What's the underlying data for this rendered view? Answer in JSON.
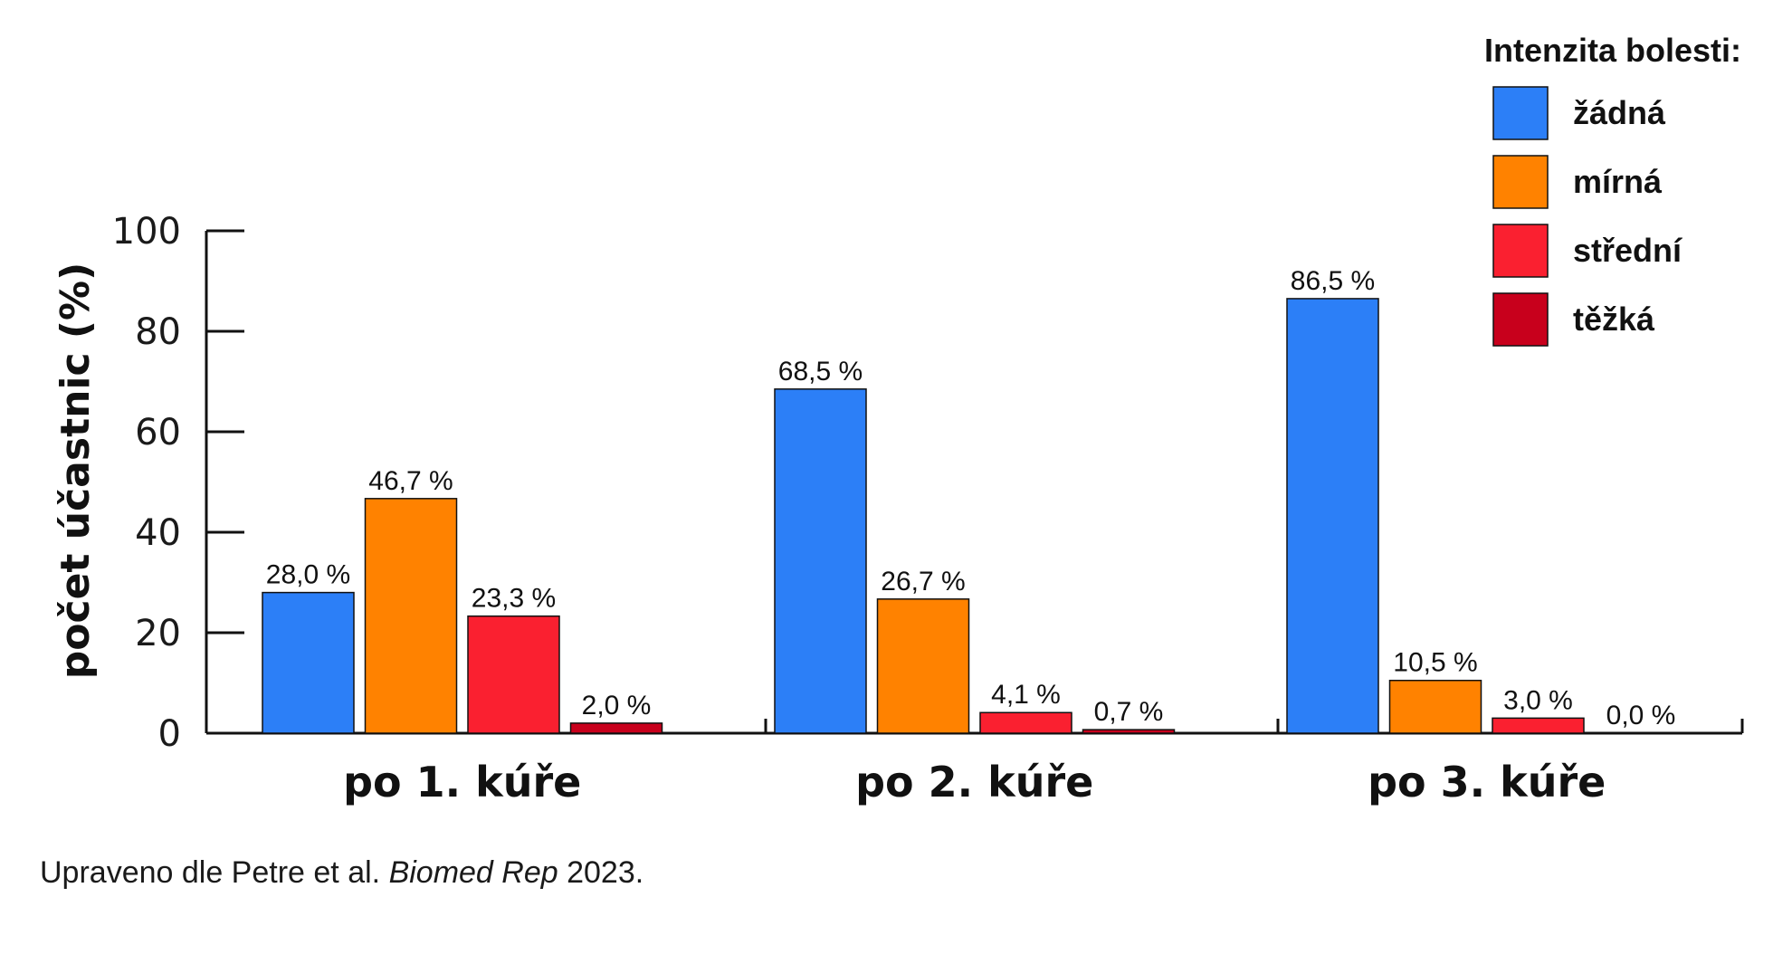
{
  "chart_data": {
    "type": "bar",
    "ylabel": "počet účastnic (%)",
    "ylim": [
      0,
      100
    ],
    "yticks": [
      "0",
      "20",
      "40",
      "60",
      "80",
      "100"
    ],
    "categories": [
      "po 1. kúře",
      "po 2. kúře",
      "po 3. kúře"
    ],
    "legend": {
      "title": "Intenzita bolesti:",
      "placement": "top-right"
    },
    "series": [
      {
        "name": "žádná",
        "color": "#2c7ff7",
        "values": [
          28.0,
          68.5,
          86.5
        ],
        "labels": [
          "28,0 %",
          "68,5 %",
          "86,5 %"
        ]
      },
      {
        "name": "mírná",
        "color": "#ff8200",
        "values": [
          46.7,
          26.7,
          10.5
        ],
        "labels": [
          "46,7 %",
          "26,7 %",
          "10,5 %"
        ]
      },
      {
        "name": "střední",
        "color": "#fa2030",
        "values": [
          23.3,
          4.1,
          3.0
        ],
        "labels": [
          "23,3 %",
          "4,1 %",
          "3,0 %"
        ]
      },
      {
        "name": "těžká",
        "color": "#c8001c",
        "values": [
          2.0,
          0.7,
          0.0
        ],
        "labels": [
          "2,0 %",
          "0,7 %",
          "0,0 %"
        ]
      }
    ]
  },
  "source": {
    "prefix": "Upraveno dle Petre et al. ",
    "journal": "Biomed Rep",
    "suffix": " 2023."
  }
}
